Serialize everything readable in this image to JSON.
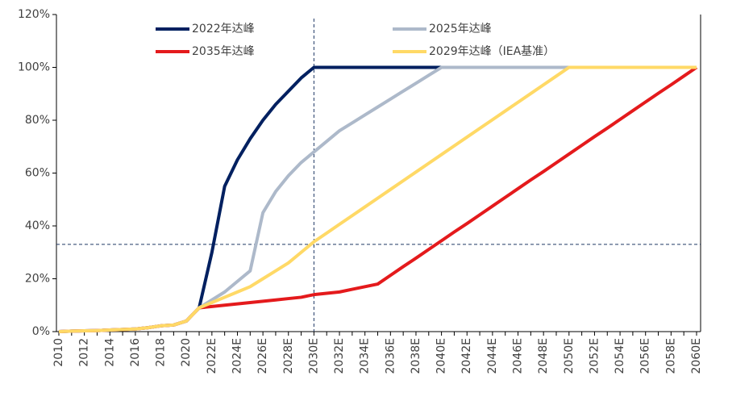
{
  "chart_data": {
    "type": "line",
    "categories": [
      "2010",
      null,
      "2012",
      null,
      "2014",
      null,
      "2016",
      null,
      "2018",
      null,
      "2020",
      null,
      "2022E",
      null,
      "2024E",
      null,
      "2026E",
      null,
      "2028E",
      null,
      "2030E",
      null,
      "2032E",
      null,
      "2034E",
      null,
      "2036E",
      null,
      "2038E",
      null,
      "2040E",
      null,
      "2042E",
      null,
      "2044E",
      null,
      "2046E",
      null,
      "2048E",
      null,
      "2050E",
      null,
      "2052E",
      null,
      "2054E",
      null,
      "2056E",
      null,
      "2058E",
      null,
      "2060E"
    ],
    "series": [
      {
        "name": "2022年达峰",
        "color": "#002060",
        "values": [
          0,
          0.2,
          0.3,
          0.4,
          0.6,
          0.8,
          1,
          1.5,
          2.2,
          2.5,
          4,
          9,
          30,
          55,
          65,
          73,
          80,
          86,
          91,
          96,
          100,
          100,
          100,
          100,
          100,
          100,
          100,
          100,
          100,
          100,
          100,
          100,
          100,
          100,
          100,
          100,
          100,
          100,
          100,
          100,
          100,
          100,
          100,
          100,
          100,
          100,
          100,
          100,
          100,
          100,
          100
        ]
      },
      {
        "name": "2025年达峰",
        "color": "#adb9ca",
        "values": [
          0,
          0.2,
          0.3,
          0.4,
          0.6,
          0.8,
          1,
          1.5,
          2.2,
          2.5,
          4,
          9,
          12,
          15,
          19,
          23,
          45,
          53,
          59,
          64,
          68,
          72,
          76,
          79,
          82,
          85,
          88,
          91,
          94,
          97,
          100,
          100,
          100,
          100,
          100,
          100,
          100,
          100,
          100,
          100,
          100,
          100,
          100,
          100,
          100,
          100,
          100,
          100,
          100,
          100,
          100
        ]
      },
      {
        "name": "2035年达峰",
        "color": "#e41a1c",
        "values": [
          0,
          0.2,
          0.3,
          0.4,
          0.6,
          0.8,
          1,
          1.5,
          2.2,
          2.5,
          4,
          9,
          9.5,
          10,
          10.5,
          11,
          11.5,
          12,
          12.5,
          13,
          14,
          14.5,
          15,
          16,
          17,
          18,
          21.3,
          24.6,
          27.8,
          31.1,
          34.4,
          37.7,
          40.9,
          44.2,
          47.5,
          50.8,
          54.1,
          57.4,
          60.6,
          63.9,
          67.2,
          70.5,
          73.8,
          77,
          80.3,
          83.6,
          86.9,
          90.2,
          93.4,
          96.7,
          100
        ]
      },
      {
        "name": "2029年达峰（IEA基准）",
        "color": "#ffd966",
        "values": [
          0,
          0.2,
          0.3,
          0.4,
          0.6,
          0.8,
          1,
          1.5,
          2.2,
          2.5,
          4,
          9,
          11,
          13,
          15,
          17,
          20,
          23,
          26,
          30,
          34,
          37.3,
          40.6,
          43.9,
          47.2,
          50.5,
          53.8,
          57.1,
          60.4,
          63.7,
          67,
          70.3,
          73.6,
          76.9,
          80.2,
          83.5,
          86.8,
          90.1,
          93.4,
          96.7,
          100,
          100,
          100,
          100,
          100,
          100,
          100,
          100,
          100,
          100,
          100
        ]
      }
    ],
    "ylim": [
      0,
      120
    ],
    "yticks": [
      {
        "value": 0,
        "label": "0%"
      },
      {
        "value": 20,
        "label": "20%"
      },
      {
        "value": 40,
        "label": "40%"
      },
      {
        "value": 60,
        "label": "60%"
      },
      {
        "value": 80,
        "label": "80%"
      },
      {
        "value": 100,
        "label": "100%"
      },
      {
        "value": 120,
        "label": "120%"
      }
    ],
    "grid": false,
    "legend": "top",
    "reference_lines": [
      {
        "axis": "y",
        "value": 33
      },
      {
        "axis": "x",
        "category": "2030E"
      }
    ]
  }
}
